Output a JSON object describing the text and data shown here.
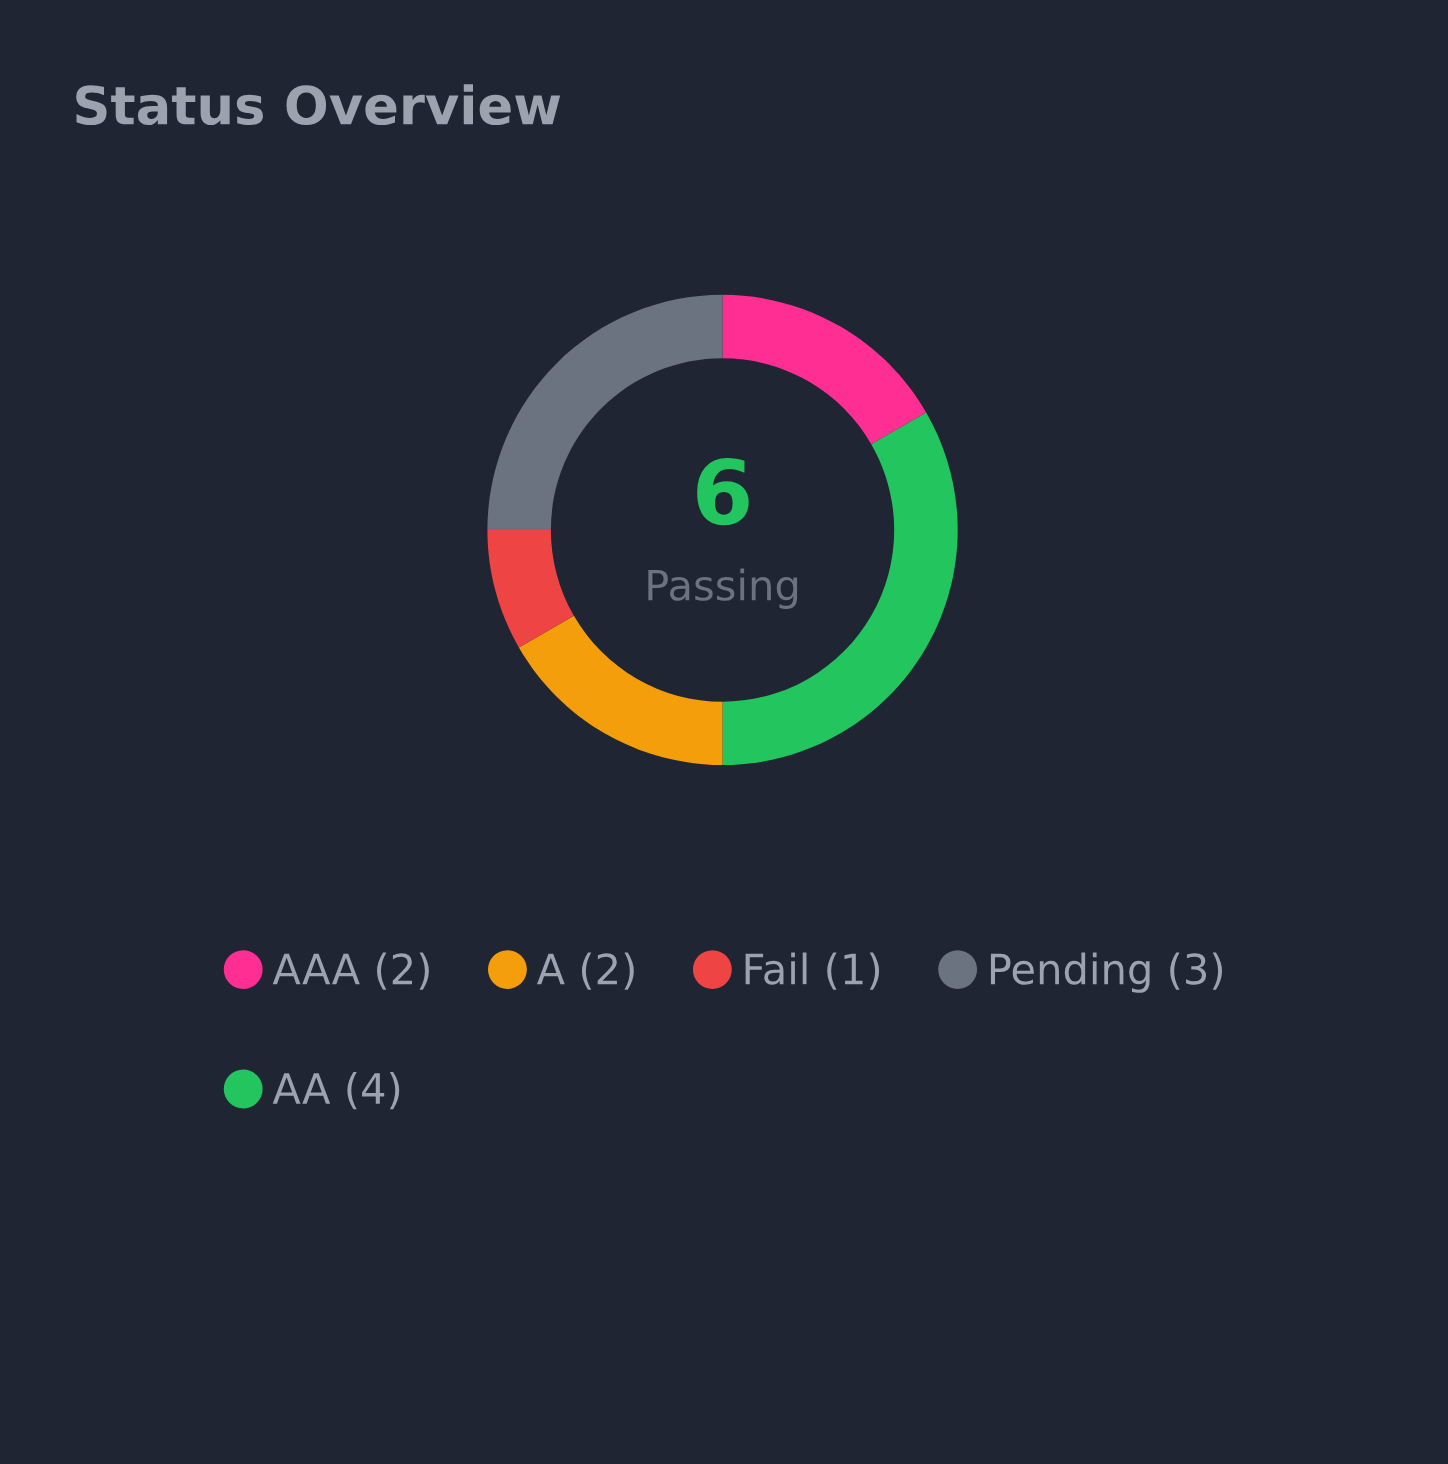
{
  "chart_data": {
    "type": "donut",
    "title": "Status Overview",
    "categories": [
      "AAA (2)",
      "AA (4)",
      "A (2)",
      "Fail (1)",
      "Pending (3)"
    ],
    "values": [
      2,
      4,
      2,
      1,
      3
    ],
    "colors": [
      "#ff2e93",
      "#22c55e",
      "#f59e0b",
      "#ef4444",
      "#6b7280"
    ],
    "annotations": [
      "6",
      "Passing"
    ],
    "legend": "bottom"
  }
}
